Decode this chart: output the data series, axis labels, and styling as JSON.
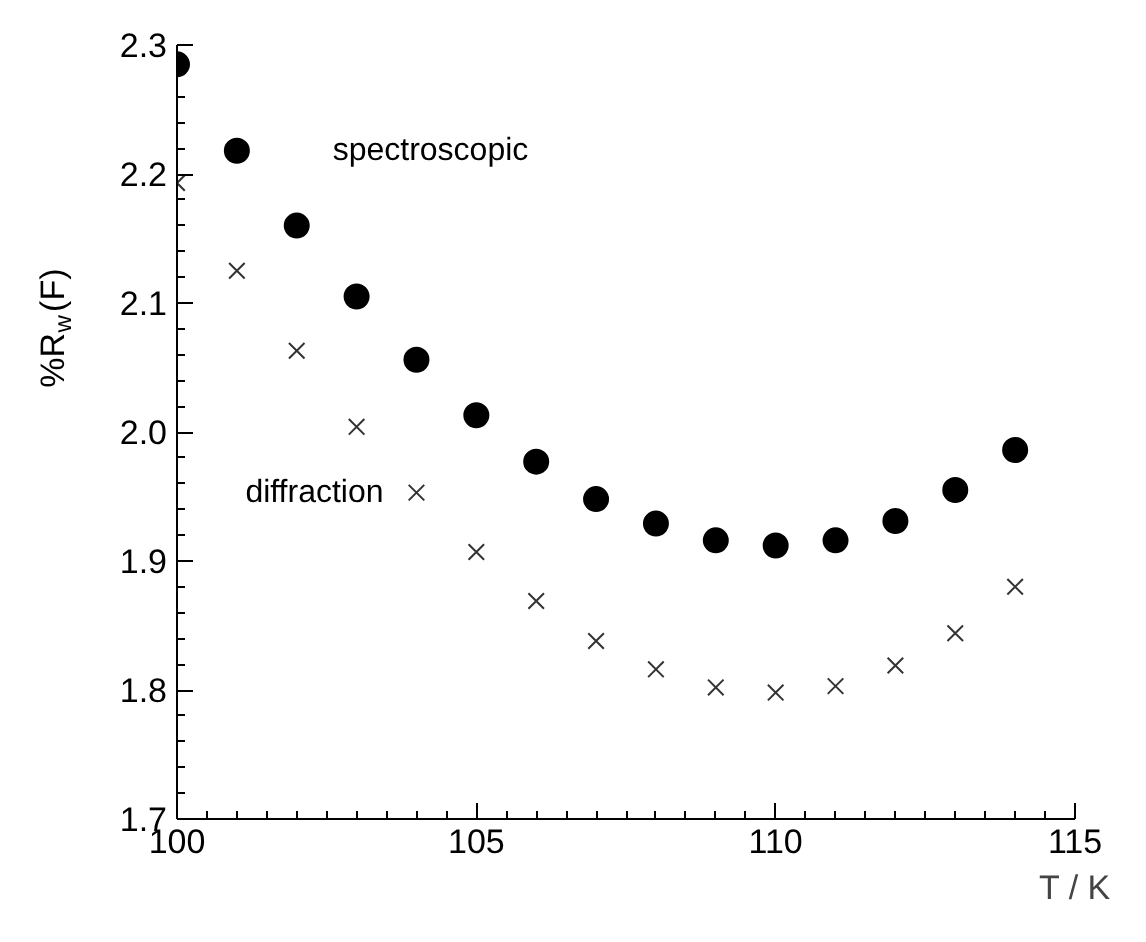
{
  "chart_data": {
    "type": "scatter",
    "xlabel": "T / K",
    "ylabel": "%R$_{w}$(F)",
    "x": [
      100,
      101,
      102,
      103,
      104,
      105,
      106,
      107,
      108,
      109,
      110,
      111,
      112,
      113,
      114
    ],
    "series": [
      {
        "name": "spectroscopic",
        "color": "#000000",
        "marker": "circle",
        "values": [
          2.285,
          2.218,
          2.16,
          2.105,
          2.056,
          2.013,
          1.977,
          1.948,
          1.929,
          1.916,
          1.912,
          1.916,
          1.931,
          1.955,
          1.986
        ]
      },
      {
        "name": "diffraction",
        "color": "#333333",
        "marker": "cross",
        "values": [
          2.193,
          2.125,
          2.063,
          2.004,
          1.953,
          1.907,
          1.869,
          1.838,
          1.816,
          1.802,
          1.798,
          1.803,
          1.819,
          1.844,
          1.88
        ]
      }
    ],
    "xlim": [
      100,
      115
    ],
    "ylim": [
      1.7,
      2.3
    ],
    "xticks": [
      100,
      105,
      110,
      115
    ],
    "yticks": [
      1.7,
      1.8,
      1.9,
      {
        "value": 2.0,
        "label": "2.0"
      },
      2.1,
      2.2,
      2.3
    ],
    "grid": false,
    "legend": false
  }
}
